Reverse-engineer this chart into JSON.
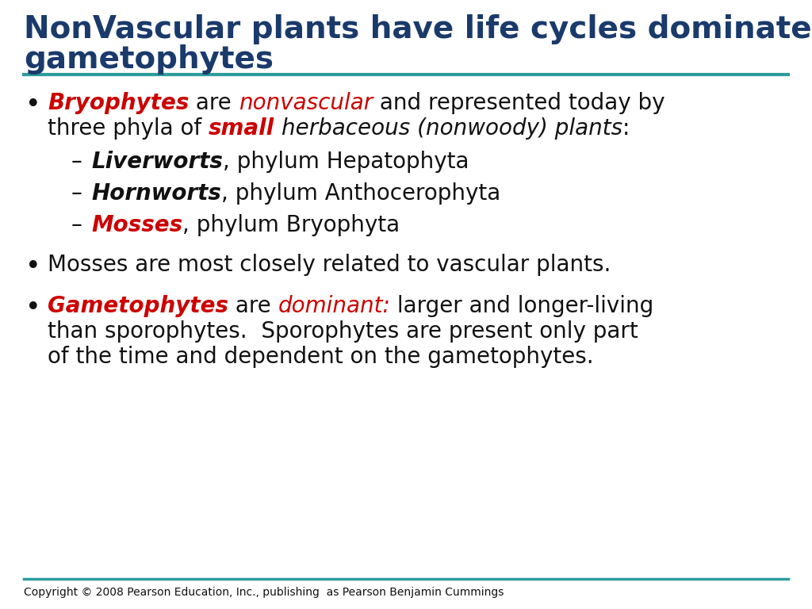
{
  "title_line1": "NonVascular plants have life cycles dominated by",
  "title_line2": "gametophytes",
  "title_color": "#1a3a6b",
  "title_fontsize": 28,
  "teal_color": "#2e9c9c",
  "red_color": "#cc0000",
  "navy_color": "#1a3a6b",
  "bg_color": "#ffffff",
  "footer_text": "Copyright © 2008 Pearson Education, Inc., publishing  as Pearson Benjamin Cummings",
  "footer_fontsize": 10,
  "bullet_fontsize": 20,
  "sub_bullet_fontsize": 20
}
